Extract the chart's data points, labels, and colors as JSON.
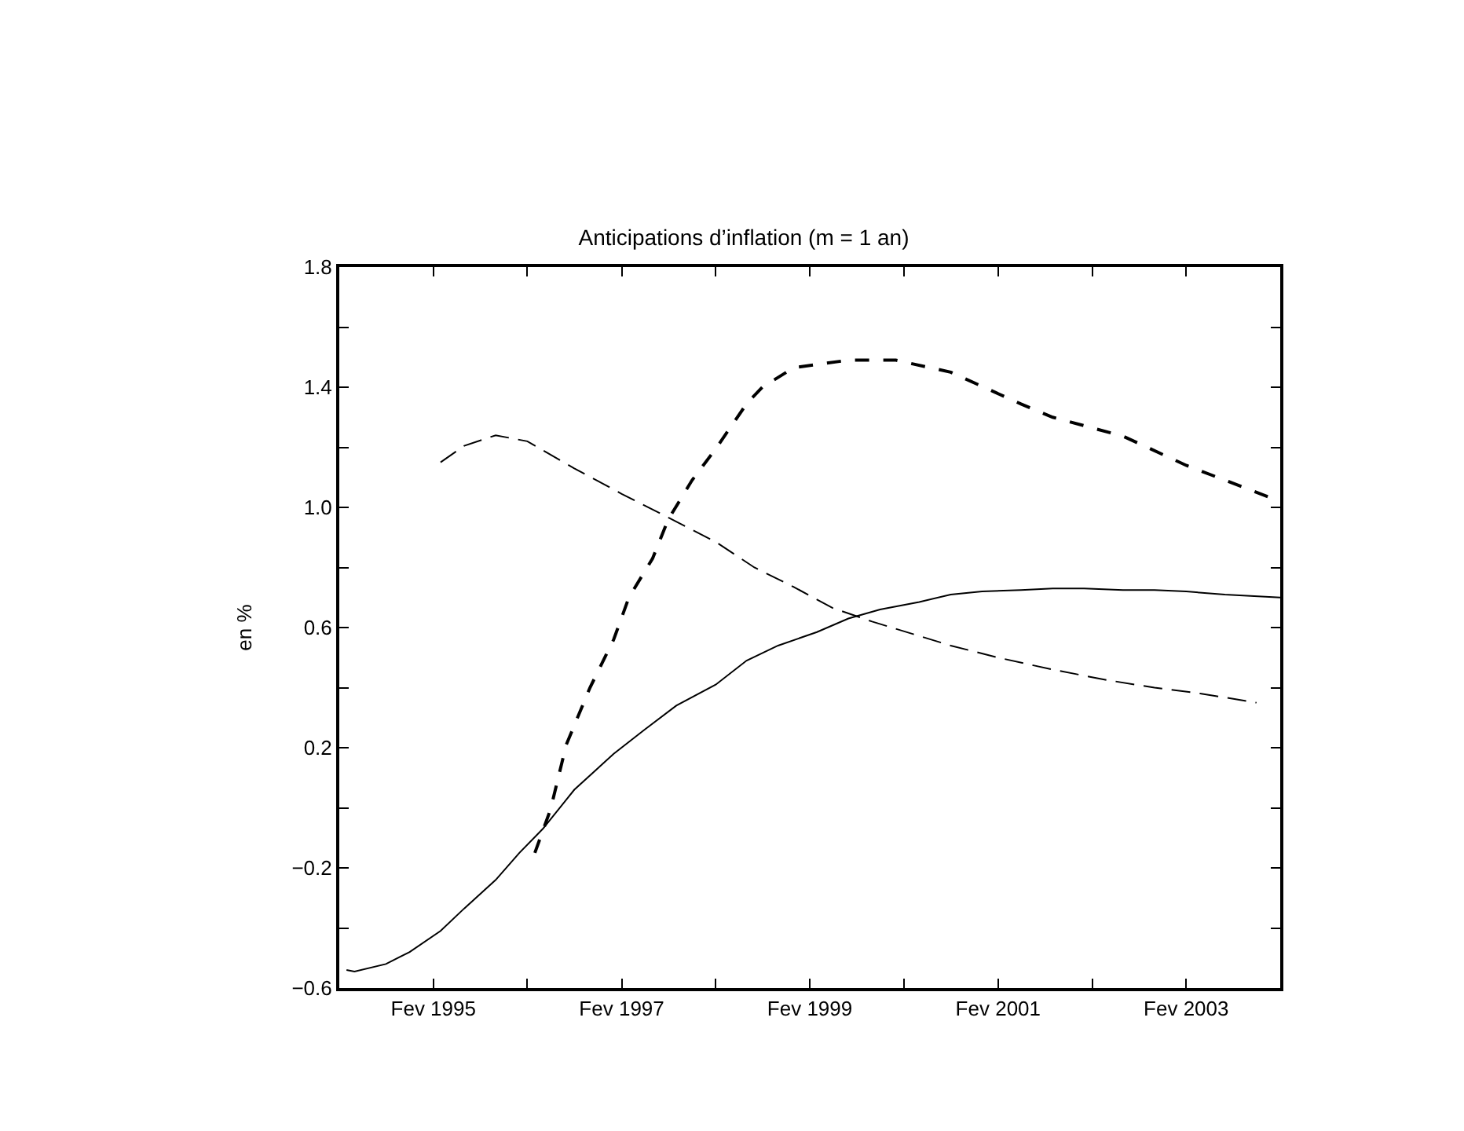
{
  "chart_data": {
    "type": "line",
    "title": "Anticipations d’inflation (m = 1 an)",
    "ylabel": "en %",
    "xlim": [
      "1994-02",
      "2004-02"
    ],
    "xticks": [
      {
        "value": "1995-02",
        "label": "Fev 1995"
      },
      {
        "value": "1996-02",
        "label": null
      },
      {
        "value": "1997-02",
        "label": "Fev 1997"
      },
      {
        "value": "1998-02",
        "label": null
      },
      {
        "value": "1999-02",
        "label": "Fev 1999"
      },
      {
        "value": "2000-02",
        "label": null
      },
      {
        "value": "2001-02",
        "label": "Fev 2001"
      },
      {
        "value": "2002-02",
        "label": null
      },
      {
        "value": "2003-02",
        "label": "Fev 2003"
      }
    ],
    "ylim": [
      -0.6,
      1.8
    ],
    "yticks": [
      {
        "value": -0.6,
        "label": "−0.6"
      },
      {
        "value": -0.4,
        "label": null
      },
      {
        "value": -0.2,
        "label": "−0.2"
      },
      {
        "value": 0,
        "label": null
      },
      {
        "value": 0.2,
        "label": "0.2"
      },
      {
        "value": 0.4,
        "label": null
      },
      {
        "value": 0.6,
        "label": "0.6"
      },
      {
        "value": 0.8,
        "label": null
      },
      {
        "value": 1.0,
        "label": "1.0"
      },
      {
        "value": 1.2,
        "label": null
      },
      {
        "value": 1.4,
        "label": "1.4"
      },
      {
        "value": 1.6,
        "label": null
      },
      {
        "value": 1.8,
        "label": "1.8"
      }
    ],
    "series": [
      {
        "color": "#000000",
        "line_style": "solid",
        "x": [
          "1994-03",
          "1994-04",
          "1994-08",
          "1994-11",
          "1995-03",
          "1995-06",
          "1995-10",
          "1996-01",
          "1996-04",
          "1996-08",
          "1997-01",
          "1997-05",
          "1997-09",
          "1998-02",
          "1998-06",
          "1998-10",
          "1999-03",
          "1999-07",
          "1999-11",
          "2000-04",
          "2000-08",
          "2000-12",
          "2001-05",
          "2001-09",
          "2002-01",
          "2002-06",
          "2002-10",
          "2003-02",
          "2003-07",
          "2004-02"
        ],
        "values": [
          -0.54,
          -0.545,
          -0.52,
          -0.48,
          -0.41,
          -0.335,
          -0.24,
          -0.15,
          -0.07,
          0.06,
          0.18,
          0.26,
          0.34,
          0.41,
          0.49,
          0.54,
          0.585,
          0.63,
          0.66,
          0.685,
          0.71,
          0.72,
          0.725,
          0.73,
          0.73,
          0.725,
          0.725,
          0.72,
          0.71,
          0.7
        ]
      },
      {
        "color": "#000000",
        "line_style": "dashed",
        "x": [
          "1995-03",
          "1995-06",
          "1995-10",
          "1996-02",
          "1996-08",
          "1997-02",
          "1997-07",
          "1998-02",
          "1998-07",
          "1998-12",
          "1999-05",
          "1999-10",
          "2000-08",
          "2001-02",
          "2001-09",
          "2002-04",
          "2002-10",
          "2003-04",
          "2003-11"
        ],
        "values": [
          1.15,
          1.205,
          1.24,
          1.22,
          1.13,
          1.045,
          0.98,
          0.885,
          0.8,
          0.735,
          0.665,
          0.62,
          0.54,
          0.5,
          0.46,
          0.425,
          0.4,
          0.38,
          0.35
        ]
      },
      {
        "color": "#000000",
        "line_style": "dashed",
        "x": [
          "1996-03",
          "1996-05",
          "1996-07",
          "1996-10",
          "1997-01",
          "1997-03",
          "1997-06",
          "1997-08",
          "1997-11",
          "1998-02",
          "1998-06",
          "1998-08",
          "1998-12",
          "1999-07",
          "2000-01",
          "2000-08",
          "2001-05",
          "2001-09",
          "2002-06",
          "2003-02",
          "2004-02"
        ],
        "values": [
          -0.15,
          -0.005,
          0.21,
          0.4,
          0.56,
          0.7,
          0.83,
          0.96,
          1.09,
          1.195,
          1.345,
          1.4,
          1.465,
          1.49,
          1.49,
          1.45,
          1.344,
          1.3,
          1.237,
          1.14,
          1.02
        ]
      }
    ]
  }
}
